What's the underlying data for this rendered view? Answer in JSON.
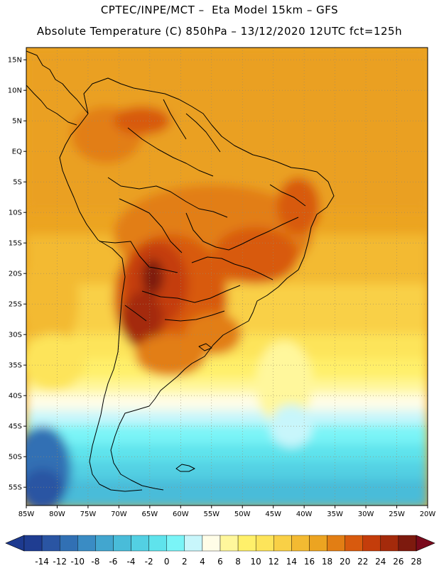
{
  "header": {
    "title_line1": "CPTEC/INPE/MCT –  Eta Model 15km – GFS",
    "title_line2": "Absolute Temperature (C) 850hPa – 13/12/2020 12UTC fct=125h"
  },
  "map": {
    "lon_range": [
      -85,
      -20
    ],
    "lat_range": [
      -58,
      17
    ],
    "lat_labels": [
      {
        "lat": 15,
        "text": "15N"
      },
      {
        "lat": 10,
        "text": "10N"
      },
      {
        "lat": 5,
        "text": "5N"
      },
      {
        "lat": 0,
        "text": "EQ"
      },
      {
        "lat": -5,
        "text": "5S"
      },
      {
        "lat": -10,
        "text": "10S"
      },
      {
        "lat": -15,
        "text": "15S"
      },
      {
        "lat": -20,
        "text": "20S"
      },
      {
        "lat": -25,
        "text": "25S"
      },
      {
        "lat": -30,
        "text": "30S"
      },
      {
        "lat": -35,
        "text": "35S"
      },
      {
        "lat": -40,
        "text": "40S"
      },
      {
        "lat": -45,
        "text": "45S"
      },
      {
        "lat": -50,
        "text": "50S"
      },
      {
        "lat": -55,
        "text": "55S"
      }
    ],
    "lon_labels": [
      {
        "lon": -85,
        "text": "85W"
      },
      {
        "lon": -80,
        "text": "80W"
      },
      {
        "lon": -75,
        "text": "75W"
      },
      {
        "lon": -70,
        "text": "70W"
      },
      {
        "lon": -65,
        "text": "65W"
      },
      {
        "lon": -60,
        "text": "60W"
      },
      {
        "lon": -55,
        "text": "55W"
      },
      {
        "lon": -50,
        "text": "50W"
      },
      {
        "lon": -45,
        "text": "45W"
      },
      {
        "lon": -40,
        "text": "40W"
      },
      {
        "lon": -35,
        "text": "35W"
      },
      {
        "lon": -30,
        "text": "30W"
      },
      {
        "lon": -25,
        "text": "25W"
      },
      {
        "lon": -20,
        "text": "20W"
      }
    ],
    "grid": true
  },
  "colorbar": {
    "labels": [
      "-14",
      "-12",
      "-10",
      "-8",
      "-6",
      "-4",
      "-2",
      "0",
      "2",
      "4",
      "6",
      "8",
      "10",
      "12",
      "14",
      "16",
      "18",
      "20",
      "22",
      "24",
      "26",
      "28"
    ],
    "low_color": "#1d3a8f",
    "high_color": "#7a0a1c",
    "colors": [
      "#1f3d91",
      "#2a55a3",
      "#3170b4",
      "#3a8cc4",
      "#42a6cf",
      "#49bcd9",
      "#53d0e3",
      "#5fe3ec",
      "#7af4f7",
      "#c8f6fb",
      "#fffde7",
      "#fff79c",
      "#fff06a",
      "#fde45a",
      "#f9d046",
      "#f3ba32",
      "#eca421",
      "#e27e14",
      "#d85a0e",
      "#c43d0b",
      "#a42a0b",
      "#7d1a0e"
    ]
  }
}
